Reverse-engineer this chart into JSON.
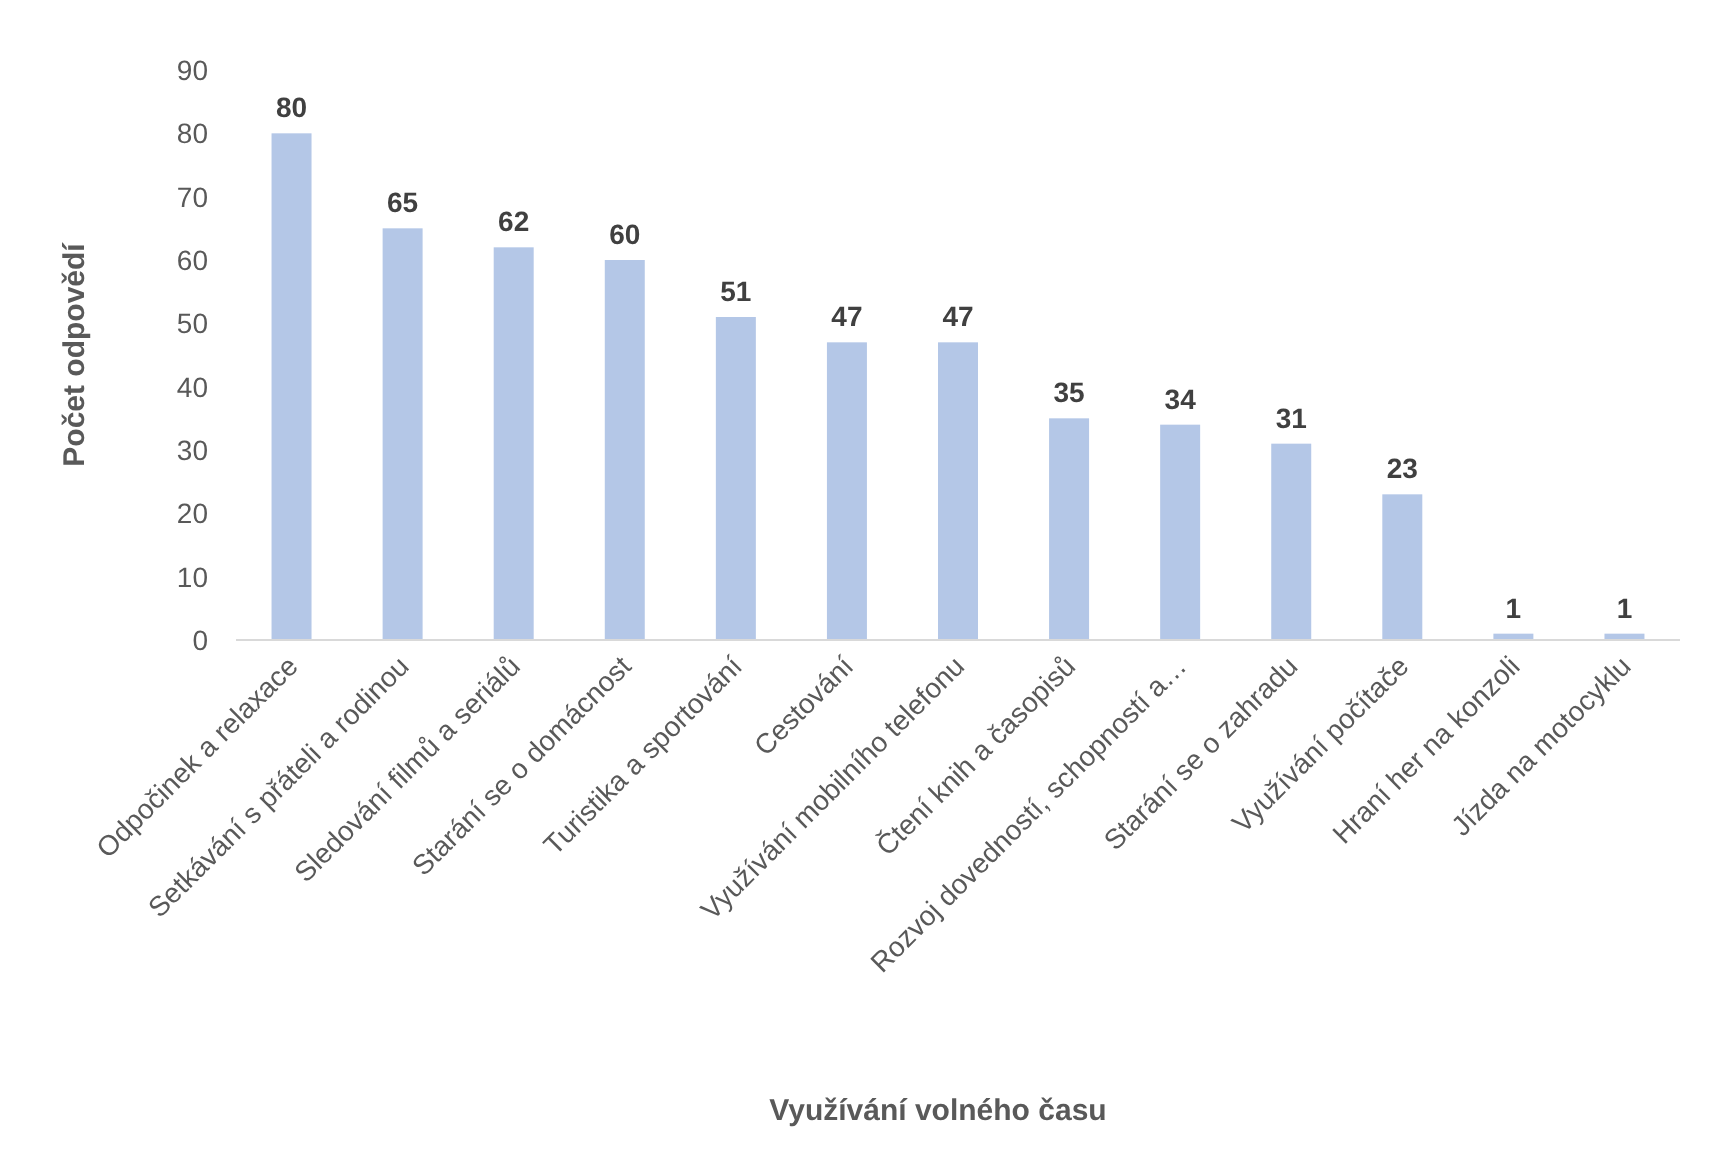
{
  "chart_data": {
    "type": "bar",
    "xlabel": "Využívání volného času",
    "ylabel": "Počet odpovědí",
    "categories": [
      "Odpočinek a relaxace",
      "Setkávání s přáteli a rodinou",
      "Sledování filmů a seriálů",
      "Starání se o domácnost",
      "Turistika a sportování",
      "Cestování",
      "Využívání mobilního telefonu",
      "Čtení knih a časopisů",
      "Rozvoj dovedností, schopností a…",
      "Starání se o zahradu",
      "Využívání počítače",
      "Hraní her na konzoli",
      "Jízda na motocyklu"
    ],
    "values": [
      80,
      65,
      62,
      60,
      51,
      47,
      47,
      35,
      34,
      31,
      23,
      1,
      1
    ],
    "color": "#b4c7e7",
    "ylim": [
      0,
      90
    ],
    "yticks": [
      0,
      10,
      20,
      30,
      40,
      50,
      60,
      70,
      80,
      90
    ],
    "data_labels": true,
    "grid": false
  }
}
